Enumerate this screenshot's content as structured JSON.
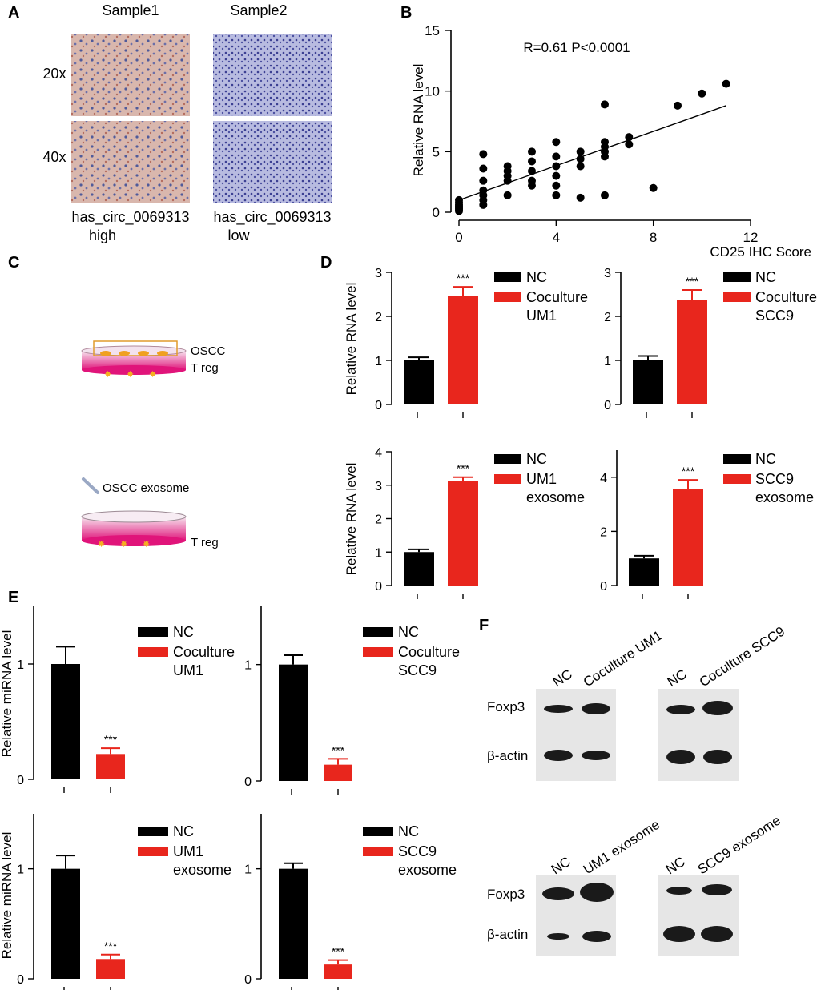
{
  "colors": {
    "black": "#000000",
    "red": "#e8261d",
    "axis": "#000000",
    "ihc_brown": "#c79484",
    "ihc_blue": "#5a5fa8",
    "band": "#1a1a1a",
    "blot_bg": "#dcdcdc"
  },
  "panel_a": {
    "letter": "A",
    "col1": "Sample1",
    "col2": "Sample2",
    "row1": "20x",
    "row2": "40x",
    "cap1_line1": "has_circ_0069313",
    "cap1_line2": "high",
    "cap2_line1": "has_circ_0069313",
    "cap2_line2": "low"
  },
  "panel_b": {
    "letter": "B"
  },
  "panel_c": {
    "letter": "C",
    "dish1_top": "OSCC",
    "dish1_bottom": "T reg",
    "dish2_top": "OSCC exosome",
    "dish2_bottom": "T reg"
  },
  "panel_d": {
    "letter": "D"
  },
  "panel_e": {
    "letter": "E"
  },
  "panel_f": {
    "letter": "F",
    "row_foxp3": "Foxp3",
    "row_actin": "β-actin",
    "blots": [
      {
        "lane1": "NC",
        "lane2": "Coculture UM1"
      },
      {
        "lane1": "NC",
        "lane2": "Coculture SCC9"
      },
      {
        "lane1": "NC",
        "lane2": "UM1 exosome"
      },
      {
        "lane1": "NC",
        "lane2": "SCC9 exosome"
      }
    ]
  },
  "chart_data": [
    {
      "id": "B",
      "type": "scatter",
      "title": "",
      "annotation": "R=0.61 P<0.0001",
      "xlabel": "CD25 IHC Score",
      "ylabel": "Relative  RNA level",
      "xlim": [
        0,
        12
      ],
      "ylim": [
        0,
        15
      ],
      "xticks": [
        0,
        4,
        8,
        12
      ],
      "yticks": [
        0,
        5,
        10,
        15
      ],
      "points": [
        [
          0,
          0.2
        ],
        [
          0,
          0.4
        ],
        [
          0,
          0.6
        ],
        [
          0,
          0.8
        ],
        [
          0,
          1.0
        ],
        [
          0,
          0.1
        ],
        [
          0,
          0.3
        ],
        [
          0,
          0.5
        ],
        [
          1,
          0.6
        ],
        [
          1,
          1.0
        ],
        [
          1,
          1.4
        ],
        [
          1,
          1.8
        ],
        [
          1,
          2.6
        ],
        [
          1,
          3.6
        ],
        [
          1,
          4.8
        ],
        [
          2,
          1.4
        ],
        [
          2,
          2.6
        ],
        [
          2,
          3.0
        ],
        [
          2,
          3.4
        ],
        [
          2,
          3.8
        ],
        [
          3,
          2.2
        ],
        [
          3,
          2.6
        ],
        [
          3,
          3.4
        ],
        [
          3,
          4.2
        ],
        [
          3,
          5.0
        ],
        [
          4,
          1.4
        ],
        [
          4,
          2.2
        ],
        [
          4,
          3.0
        ],
        [
          4,
          3.8
        ],
        [
          4,
          4.6
        ],
        [
          4,
          5.8
        ],
        [
          5,
          1.2
        ],
        [
          5,
          3.8
        ],
        [
          5,
          4.4
        ],
        [
          5,
          5.0
        ],
        [
          6,
          1.4
        ],
        [
          6,
          4.6
        ],
        [
          6,
          5.0
        ],
        [
          6,
          5.4
        ],
        [
          6,
          5.8
        ],
        [
          6,
          8.9
        ],
        [
          7,
          5.6
        ],
        [
          7,
          6.2
        ],
        [
          8,
          2.0
        ],
        [
          9,
          8.8
        ],
        [
          10,
          9.8
        ],
        [
          11,
          10.6
        ]
      ],
      "fit": {
        "x": [
          0,
          11
        ],
        "y": [
          1.0,
          8.8
        ]
      }
    },
    {
      "id": "D1",
      "type": "bar",
      "ylabel": "Relative  RNA level",
      "categories": [
        "NC",
        "Coculture UM1"
      ],
      "legend": [
        "NC",
        "Coculture",
        "UM1"
      ],
      "values": [
        1.0,
        2.47
      ],
      "errors": [
        0.07,
        0.2
      ],
      "ylim": [
        0,
        3
      ],
      "yticks": [
        0,
        1,
        2,
        3
      ],
      "annotations": [
        "",
        "***"
      ]
    },
    {
      "id": "D2",
      "type": "bar",
      "ylabel": "",
      "categories": [
        "NC",
        "Coculture SCC9"
      ],
      "legend": [
        "NC",
        "Coculture",
        "SCC9"
      ],
      "values": [
        1.0,
        2.38
      ],
      "errors": [
        0.1,
        0.22
      ],
      "ylim": [
        0,
        3
      ],
      "yticks": [
        0,
        1,
        2,
        3
      ],
      "annotations": [
        "",
        "***"
      ]
    },
    {
      "id": "D3",
      "type": "bar",
      "ylabel": "Relative  RNA level",
      "categories": [
        "NC",
        "UM1 exosome"
      ],
      "legend": [
        "NC",
        "UM1",
        "exosome"
      ],
      "values": [
        1.0,
        3.12
      ],
      "errors": [
        0.08,
        0.12
      ],
      "ylim": [
        0,
        4
      ],
      "yticks": [
        0,
        1,
        2,
        3,
        4
      ],
      "annotations": [
        "",
        "***"
      ]
    },
    {
      "id": "D4",
      "type": "bar",
      "ylabel": "",
      "categories": [
        "NC",
        "SCC9 exosome"
      ],
      "legend": [
        "NC",
        "SCC9",
        "exosome"
      ],
      "values": [
        1.0,
        3.55
      ],
      "errors": [
        0.1,
        0.35
      ],
      "ylim": [
        0,
        5
      ],
      "yticks": [
        0,
        2,
        4
      ],
      "annotations": [
        "",
        "***"
      ]
    },
    {
      "id": "E1",
      "type": "bar",
      "ylabel": "Relative  miRNA level",
      "categories": [
        "NC",
        "Coculture UM1"
      ],
      "legend": [
        "NC",
        "Coculture",
        "UM1"
      ],
      "values": [
        1.0,
        0.22
      ],
      "errors": [
        0.15,
        0.05
      ],
      "ylim": [
        0,
        1.5
      ],
      "yticks": [
        0,
        1
      ],
      "annotations": [
        "",
        "***"
      ]
    },
    {
      "id": "E2",
      "type": "bar",
      "ylabel": "",
      "categories": [
        "NC",
        "Coculture SCC9"
      ],
      "legend": [
        "NC",
        "Coculture",
        "SCC9"
      ],
      "values": [
        1.0,
        0.14
      ],
      "errors": [
        0.08,
        0.05
      ],
      "ylim": [
        0,
        1.5
      ],
      "yticks": [
        0,
        1
      ],
      "annotations": [
        "",
        "***"
      ]
    },
    {
      "id": "E3",
      "type": "bar",
      "ylabel": "Relative  miRNA level",
      "categories": [
        "NC",
        "UM1 exosome"
      ],
      "legend": [
        "NC",
        "UM1",
        "exosome"
      ],
      "values": [
        1.0,
        0.18
      ],
      "errors": [
        0.12,
        0.04
      ],
      "ylim": [
        0,
        1.5
      ],
      "yticks": [
        0,
        1
      ],
      "annotations": [
        "",
        "***"
      ]
    },
    {
      "id": "E4",
      "type": "bar",
      "ylabel": "",
      "categories": [
        "NC",
        "SCC9 exosome"
      ],
      "legend": [
        "NC",
        "SCC9",
        "exosome"
      ],
      "values": [
        1.0,
        0.13
      ],
      "errors": [
        0.05,
        0.04
      ],
      "ylim": [
        0,
        1.5
      ],
      "yticks": [
        0,
        1
      ],
      "annotations": [
        "",
        "***"
      ]
    }
  ]
}
